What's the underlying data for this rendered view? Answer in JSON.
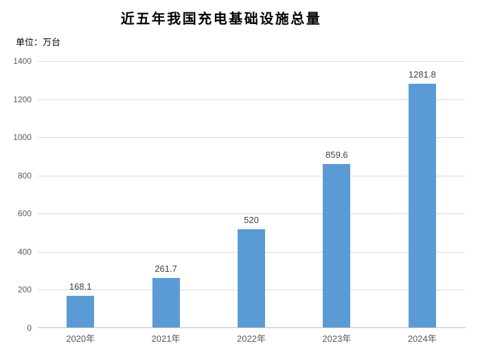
{
  "title": "近五年我国充电基础设施总量",
  "unit_label": "单位：万台",
  "chart_data": {
    "type": "bar",
    "title": "近五年我国充电基础设施总量",
    "xlabel": "",
    "ylabel": "单位：万台",
    "categories": [
      "2020年",
      "2021年",
      "2022年",
      "2023年",
      "2024年"
    ],
    "values": [
      168.1,
      261.7,
      520,
      859.6,
      1281.8
    ],
    "data_labels": [
      "168.1",
      "261.7",
      "520",
      "859.6",
      "1281.8"
    ],
    "ylim": [
      0,
      1400
    ],
    "yticks": [
      0,
      200,
      400,
      600,
      800,
      1000,
      1200,
      1400
    ],
    "grid": true,
    "legend": false,
    "colors": {
      "bar": "#5B9BD5",
      "gridline": "#D9D9D9",
      "axis_line": "#BFBFBF",
      "tick_label": "#595959",
      "data_label": "#404040",
      "title": "#000000"
    }
  }
}
